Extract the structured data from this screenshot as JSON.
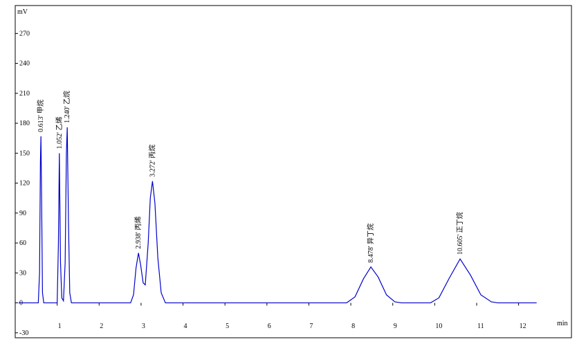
{
  "chart_data": {
    "type": "line",
    "y_label": "mV",
    "x_label": "min",
    "xlim": [
      0,
      13.26
    ],
    "ylim": [
      -35,
      298
    ],
    "xticks": [
      1,
      2,
      3,
      4,
      5,
      6,
      7,
      8,
      9,
      10,
      11,
      12
    ],
    "yticks": [
      -30,
      0,
      30,
      60,
      90,
      120,
      150,
      180,
      210,
      240,
      270
    ],
    "series": [
      {
        "color": "#0000cc",
        "x": [
          0.08,
          0.55,
          0.58,
          0.6,
          0.613,
          0.63,
          0.65,
          0.68,
          1.0,
          1.03,
          1.052,
          1.08,
          1.11,
          1.15,
          1.19,
          1.22,
          1.24,
          1.27,
          1.3,
          1.34,
          2.75,
          2.82,
          2.88,
          2.938,
          2.99,
          3.05,
          3.1,
          3.17,
          3.22,
          3.272,
          3.33,
          3.4,
          3.48,
          3.58,
          7.9,
          8.1,
          8.3,
          8.478,
          8.65,
          8.85,
          9.05,
          9.2,
          9.9,
          10.1,
          10.35,
          10.605,
          10.85,
          11.1,
          11.35,
          11.5,
          12.43
        ],
        "values": [
          0,
          0,
          30,
          140,
          167,
          100,
          10,
          0,
          0,
          60,
          150,
          40,
          5,
          2,
          40,
          150,
          176,
          80,
          10,
          0,
          0,
          8,
          35,
          50,
          38,
          20,
          18,
          60,
          105,
          122,
          100,
          45,
          10,
          0,
          0,
          6,
          24,
          36,
          26,
          8,
          1,
          0,
          0,
          5,
          25,
          44,
          28,
          8,
          1,
          0,
          0
        ]
      }
    ],
    "annotations": [
      {
        "text": "0.613' 甲烷",
        "x": 0.613,
        "y": 167
      },
      {
        "text": "1.052' 乙烯",
        "x": 1.052,
        "y": 150
      },
      {
        "text": "1.240' 乙烷",
        "x": 1.24,
        "y": 176
      },
      {
        "text": "2.938' 丙烯",
        "x": 2.938,
        "y": 50
      },
      {
        "text": "3.272' 丙烷",
        "x": 3.272,
        "y": 122
      },
      {
        "text": "8.478' 异丁烷",
        "x": 8.478,
        "y": 36
      },
      {
        "text": "10.605' 正丁烷",
        "x": 10.605,
        "y": 44
      }
    ]
  }
}
